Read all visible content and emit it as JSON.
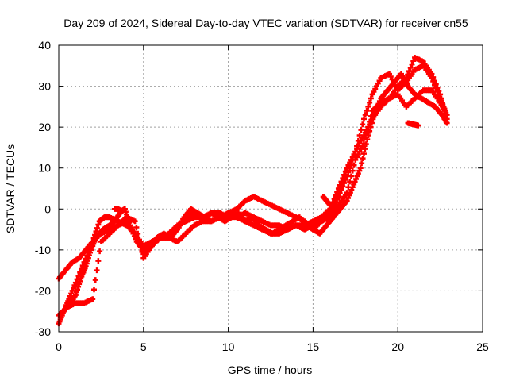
{
  "chart_data": {
    "type": "scatter",
    "title": "Day 209 of 2024, Sidereal Day-to-day VTEC variation (SDTVAR) for receiver cn55",
    "xlabel": "GPS time / hours",
    "ylabel": "SDTVAR / TECUs",
    "xlim": [
      0,
      25
    ],
    "ylim": [
      -30,
      40
    ],
    "xticks": [
      0,
      5,
      10,
      15,
      20,
      25
    ],
    "yticks": [
      -30,
      -20,
      -10,
      0,
      10,
      20,
      30,
      40
    ],
    "xtick_labels": [
      "0",
      "5",
      "10",
      "15",
      "20",
      "25"
    ],
    "ytick_labels": [
      "-30",
      "-20",
      "-10",
      "0",
      "10",
      "20",
      "30",
      "40"
    ],
    "grid": true,
    "marker": "plus",
    "color": "#ff0000",
    "series": [
      {
        "name": "track-1",
        "x": [
          0,
          0.3,
          0.6,
          1.0,
          1.5,
          2.0,
          2.4,
          2.7,
          3.0,
          3.5,
          4.0,
          4.5,
          5.0,
          5.5,
          6.0,
          6.5,
          7.0,
          7.5,
          8.0,
          8.5,
          9.0,
          9.5,
          10.0,
          10.5,
          11.0,
          11.5,
          12.0,
          12.5,
          13.0,
          13.5,
          14.0,
          14.5,
          15.0,
          15.5,
          16.0,
          16.5,
          17.0,
          17.5,
          18.0,
          18.5,
          19.0,
          19.5,
          20.0,
          20.5,
          21.0,
          21.5,
          22.0,
          22.5,
          22.8
        ],
        "y": [
          -28,
          -25,
          -22,
          -18,
          -13,
          -8,
          -3,
          -2,
          -2,
          -3,
          -4,
          -6,
          -11,
          -8,
          -7,
          -6,
          -4,
          -3,
          -2,
          -2,
          -1,
          -1,
          -2,
          -2,
          -1,
          -2,
          -3,
          -4,
          -4,
          -5,
          -4,
          -4,
          -3,
          -2,
          0,
          5,
          10,
          14,
          22,
          28,
          32,
          33,
          29,
          31,
          34,
          35,
          32,
          27,
          24
        ]
      },
      {
        "name": "track-2",
        "x": [
          0,
          0.4,
          0.8,
          1.2,
          1.6,
          2.0,
          2.5,
          3.0,
          3.5,
          4.0,
          4.5,
          5.0,
          5.5,
          6.0,
          6.5,
          7.0,
          7.5,
          8.0,
          8.5,
          9.0,
          9.5,
          10.0,
          10.5,
          11.0,
          11.5,
          12.0,
          12.5,
          13.0,
          13.5,
          14.0,
          14.5,
          15.0,
          15.5,
          16.0,
          16.5,
          17.0,
          17.5,
          18.0,
          18.5,
          19.0,
          19.5,
          20.0,
          20.5,
          21.0,
          21.5,
          22.0,
          22.5,
          22.9
        ],
        "y": [
          -17,
          -15,
          -13,
          -12,
          -10,
          -8,
          -6,
          -5,
          -4,
          -3,
          -6,
          -9,
          -8,
          -7,
          -7,
          -5,
          -2,
          -1,
          -2,
          -3,
          -2,
          -1,
          -2,
          -3,
          -4,
          -5,
          -6,
          -6,
          -5,
          -4,
          -5,
          -4,
          -3,
          -1,
          3,
          8,
          14,
          18,
          22,
          25,
          27,
          30,
          32,
          37,
          36,
          33,
          28,
          22
        ]
      },
      {
        "name": "track-3",
        "x": [
          0,
          0.5,
          1.0,
          1.5,
          2.0,
          2.5,
          3.0,
          3.5,
          4.0,
          4.5,
          5.0,
          5.5,
          6.0,
          6.5,
          7.0,
          7.5,
          8.0,
          8.5,
          9.0,
          9.5,
          10.0,
          10.5,
          11.0,
          11.5,
          12.0,
          12.5,
          13.0,
          13.5,
          14.0,
          14.5,
          15.0,
          15.5,
          16.0,
          16.5,
          17.0,
          17.5,
          18.0,
          18.5,
          19.0,
          19.5,
          20.0,
          20.5,
          21.0,
          21.5,
          22.0,
          22.5,
          22.9
        ],
        "y": [
          -26,
          -24,
          -23,
          -23,
          -22,
          -8,
          -6,
          -4,
          -2,
          -3,
          -12,
          -9,
          -7,
          -7,
          -8,
          -6,
          -4,
          -3,
          -3,
          -2,
          -1,
          0,
          2,
          3,
          2,
          1,
          0,
          -1,
          -2,
          -3,
          -5,
          -3,
          -2,
          1,
          4,
          12,
          16,
          24,
          26,
          27,
          28,
          25,
          27,
          29,
          29,
          26,
          23
        ]
      },
      {
        "name": "track-4",
        "x": [
          0.7,
          1.0,
          1.3,
          1.6,
          1.9,
          2.2,
          2.6,
          3.0,
          3.3,
          3.6,
          3.9,
          4.2,
          4.6,
          5.0,
          5.4,
          5.8,
          6.2,
          6.6,
          7.0,
          7.4,
          7.8,
          8.2,
          8.6,
          9.0,
          9.4,
          9.8,
          10.2,
          10.6,
          11.0,
          11.4,
          11.8,
          12.2,
          12.6,
          13.0,
          13.4,
          13.8,
          14.2,
          14.6,
          15.0,
          15.4,
          15.8,
          16.2,
          16.6,
          17.0,
          17.4,
          17.8,
          18.2,
          18.6,
          19.0,
          19.4,
          19.8,
          20.2,
          20.6,
          21.0,
          21.4,
          21.8,
          22.2,
          22.6,
          22.9
        ],
        "y": [
          -23,
          -21,
          -17,
          -14,
          -10,
          -7,
          -5,
          -4,
          -3,
          -1,
          0,
          -4,
          -8,
          -10,
          -9,
          -7,
          -6,
          -7,
          -5,
          -2,
          0,
          -1,
          -2,
          -1,
          -2,
          -3,
          -2,
          -1,
          -3,
          -2,
          -4,
          -5,
          -6,
          -5,
          -4,
          -3,
          -2,
          -4,
          -5,
          -6,
          -4,
          -2,
          0,
          2,
          6,
          10,
          17,
          23,
          27,
          29,
          31,
          33,
          30,
          28,
          27,
          26,
          25,
          23,
          21
        ]
      },
      {
        "name": "segment-a",
        "x": [
          15.6,
          15.8,
          16.0,
          16.2,
          16.4
        ],
        "y": [
          3,
          2,
          1,
          1,
          0
        ]
      },
      {
        "name": "segment-b",
        "x": [
          20.6,
          20.8,
          21.0,
          21.2
        ],
        "y": [
          21,
          20.8,
          20.6,
          20.4
        ]
      },
      {
        "name": "segment-c",
        "x": [
          3.3,
          3.5,
          3.7,
          3.9
        ],
        "y": [
          0,
          0,
          -0.5,
          0
        ]
      }
    ]
  }
}
